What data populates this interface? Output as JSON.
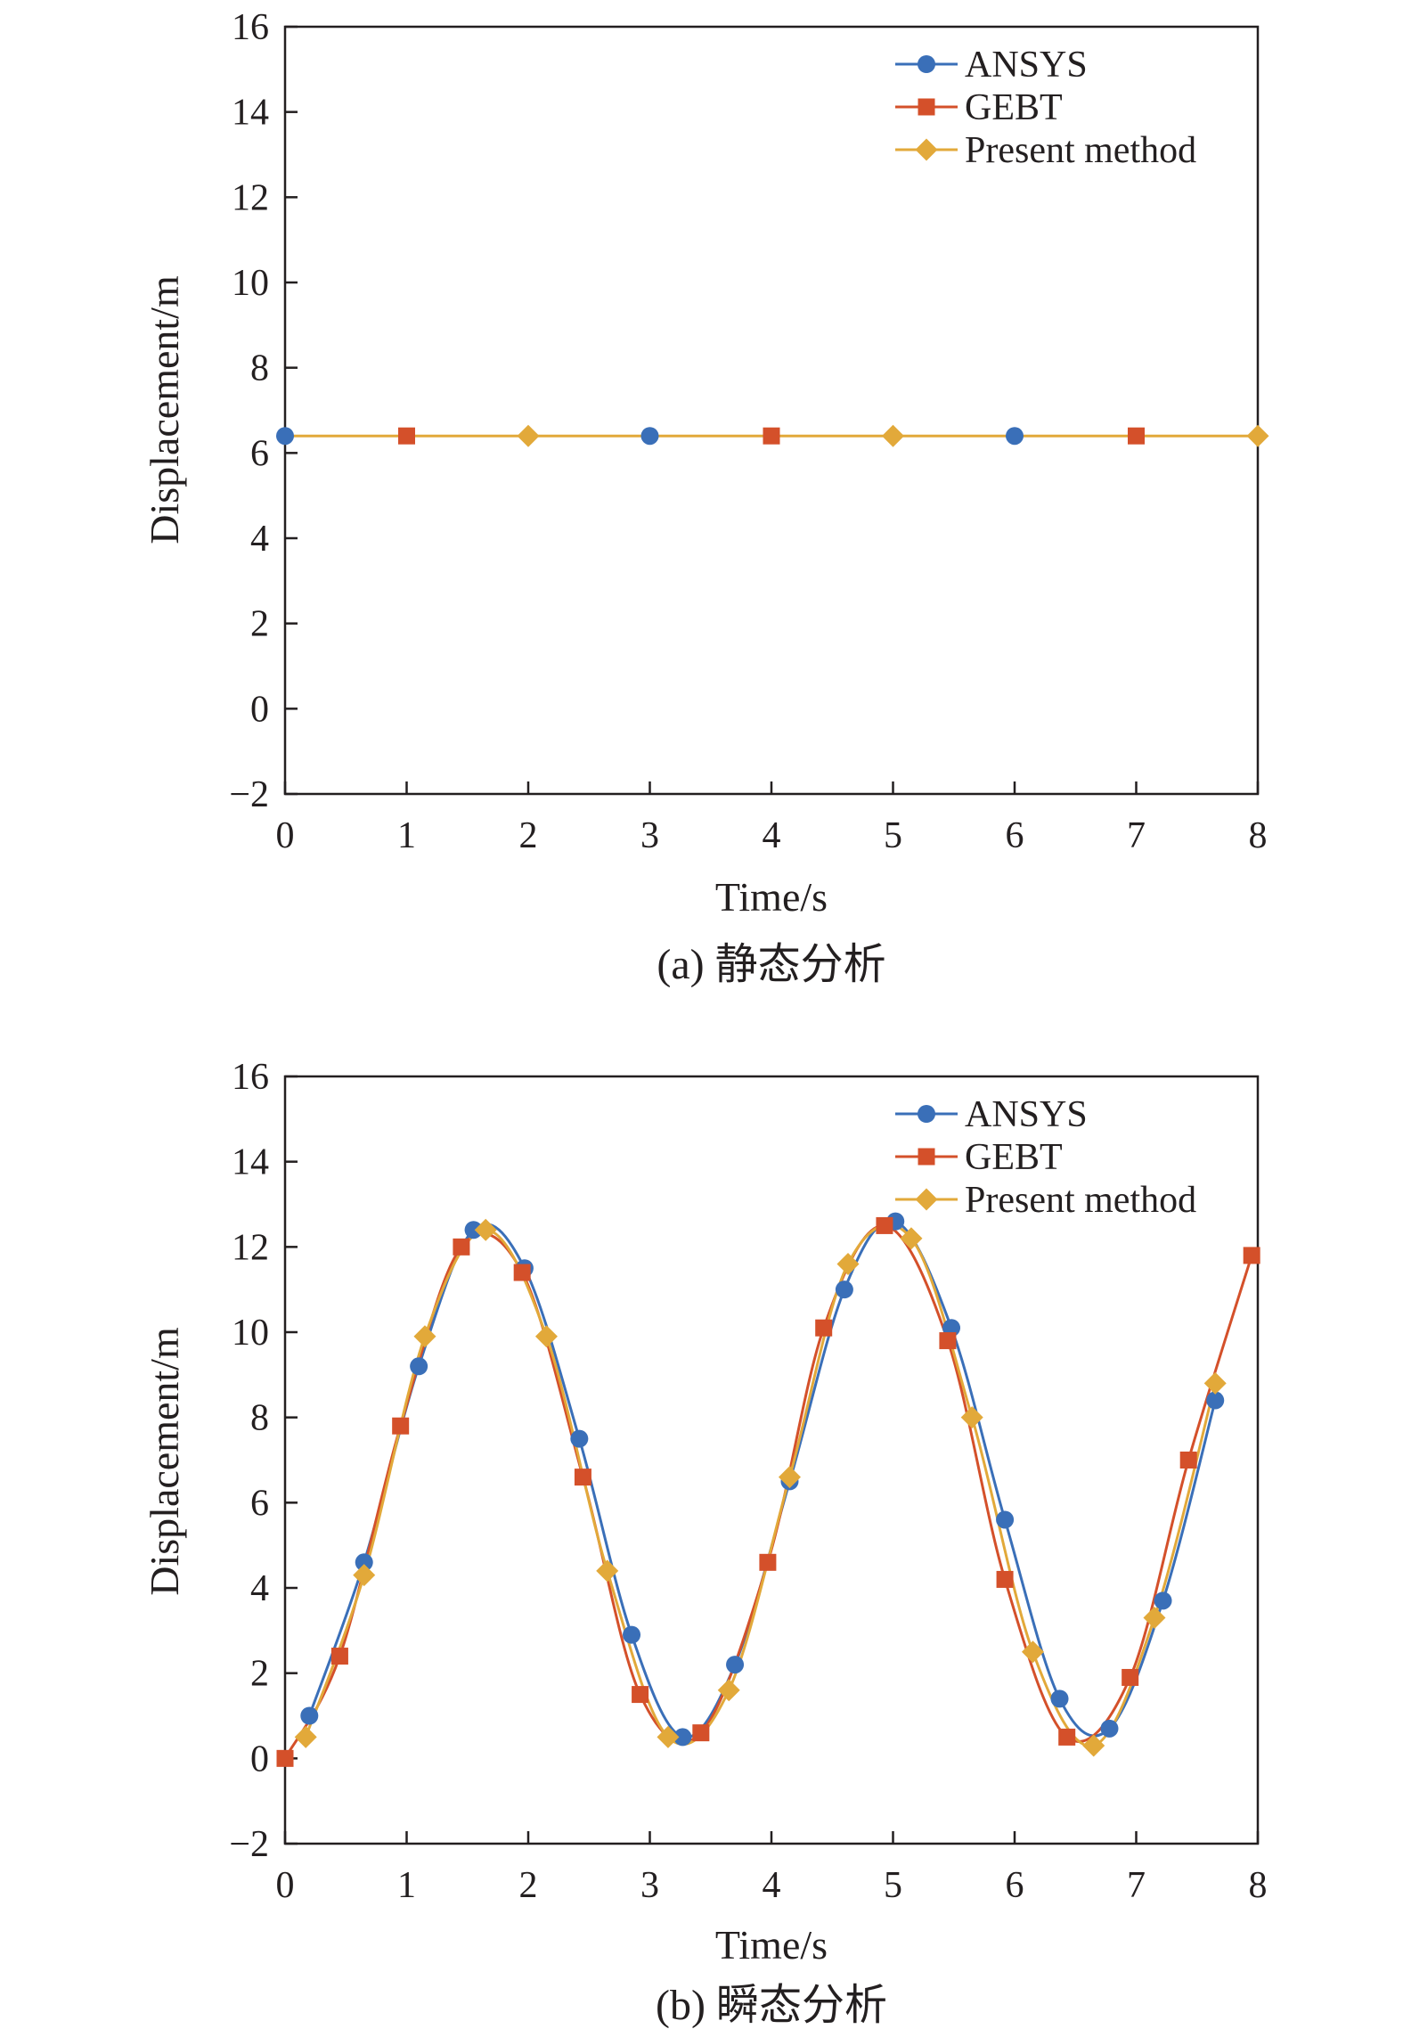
{
  "chart_data": [
    {
      "type": "line",
      "caption": "(a) 静态分析",
      "xlabel": "Time/s",
      "ylabel": "Displacement/m",
      "xlim": [
        0,
        8
      ],
      "ylim": [
        -2,
        16
      ],
      "xticks": [
        "0",
        "1",
        "2",
        "3",
        "4",
        "5",
        "6",
        "7",
        "8"
      ],
      "yticks": [
        "16",
        "14",
        "12",
        "10",
        "8",
        "6",
        "4",
        "2",
        "0",
        "−2"
      ],
      "legend_position": "top-right",
      "colors": {
        "ANSYS": "#3a6fb8",
        "GEBT": "#d4502a",
        "Present method": "#e2a93a"
      },
      "series": [
        {
          "name": "ANSYS",
          "marker": "circle",
          "x": [
            0,
            3,
            6
          ],
          "y": [
            6.4,
            6.4,
            6.4
          ]
        },
        {
          "name": "GEBT",
          "marker": "square",
          "x": [
            1,
            4,
            7
          ],
          "y": [
            6.4,
            6.4,
            6.4
          ]
        },
        {
          "name": "Present method",
          "marker": "diamond",
          "x": [
            2,
            5,
            8
          ],
          "y": [
            6.4,
            6.4,
            6.4
          ]
        }
      ],
      "line": {
        "x": [
          0,
          8
        ],
        "y": [
          6.4,
          6.4
        ]
      }
    },
    {
      "type": "line",
      "caption": "(b) 瞬态分析",
      "xlabel": "Time/s",
      "ylabel": "Displacement/m",
      "xlim": [
        0,
        8
      ],
      "ylim": [
        -2,
        16
      ],
      "xticks": [
        "0",
        "1",
        "2",
        "3",
        "4",
        "5",
        "6",
        "7",
        "8"
      ],
      "yticks": [
        "16",
        "14",
        "12",
        "10",
        "8",
        "6",
        "4",
        "2",
        "0",
        "−2"
      ],
      "legend_position": "top-right",
      "colors": {
        "ANSYS": "#3a6fb8",
        "GEBT": "#d4502a",
        "Present method": "#e2a93a"
      },
      "series": [
        {
          "name": "ANSYS",
          "marker": "circle",
          "x": [
            0.2,
            0.65,
            1.1,
            1.55,
            1.97,
            2.42,
            2.85,
            3.27,
            3.7,
            4.15,
            4.6,
            5.02,
            5.48,
            5.92,
            6.37,
            6.78,
            7.22,
            7.65
          ],
          "y": [
            1.0,
            4.6,
            9.2,
            12.4,
            11.5,
            7.5,
            2.9,
            0.5,
            2.2,
            6.5,
            11.0,
            12.6,
            10.1,
            5.6,
            1.4,
            0.7,
            3.7,
            8.4
          ]
        },
        {
          "name": "GEBT",
          "marker": "square",
          "x": [
            0.0,
            0.45,
            0.95,
            1.45,
            1.95,
            2.45,
            2.92,
            3.42,
            3.97,
            4.43,
            4.93,
            5.45,
            5.92,
            6.43,
            6.95,
            7.43,
            7.95
          ],
          "y": [
            0.0,
            2.4,
            7.8,
            12.0,
            11.4,
            6.6,
            1.5,
            0.6,
            4.6,
            10.1,
            12.5,
            9.8,
            4.2,
            0.5,
            1.9,
            7.0,
            11.8
          ]
        },
        {
          "name": "Present method",
          "marker": "diamond",
          "x": [
            0.17,
            0.65,
            1.15,
            1.65,
            2.15,
            2.65,
            3.15,
            3.65,
            4.15,
            4.63,
            5.15,
            5.65,
            6.15,
            6.65,
            7.15,
            7.65
          ],
          "y": [
            0.5,
            4.3,
            9.9,
            12.4,
            9.9,
            4.4,
            0.5,
            1.6,
            6.6,
            11.6,
            12.2,
            8.0,
            2.5,
            0.3,
            3.3,
            8.8
          ]
        }
      ]
    }
  ]
}
